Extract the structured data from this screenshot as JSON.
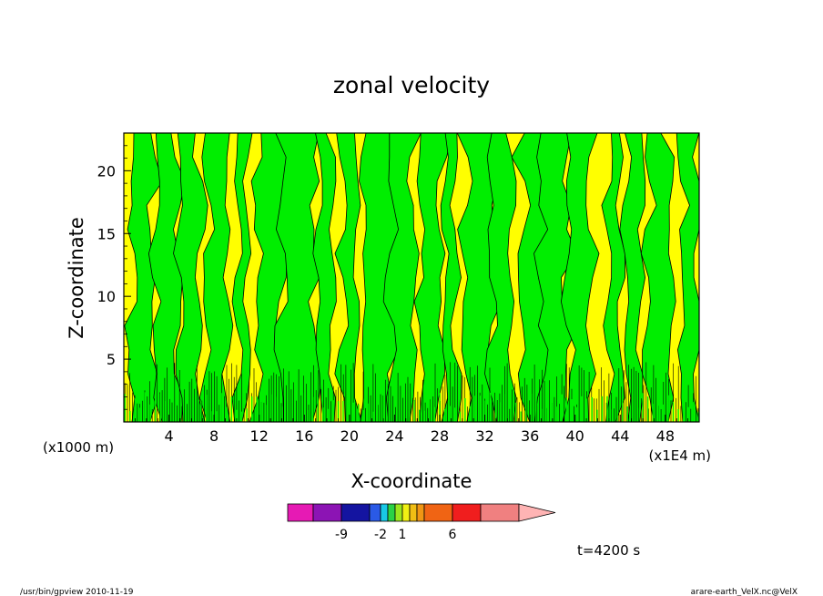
{
  "chart_data": {
    "type": "heatmap",
    "title": "zonal velocity",
    "xlabel": "X-coordinate",
    "ylabel": "Z-coordinate",
    "x_unit_label": "(x1E4 m)",
    "y_unit_label": "(x1000 m)",
    "xlim": [
      0,
      51
    ],
    "ylim": [
      0,
      23
    ],
    "x_ticks": [
      "4",
      "8",
      "12",
      "16",
      "20",
      "24",
      "28",
      "32",
      "36",
      "40",
      "44",
      "48"
    ],
    "y_ticks": [
      "5",
      "10",
      "15",
      "20"
    ],
    "colorbar": {
      "labels": [
        "-9",
        "-2",
        "1",
        "6"
      ],
      "colors": [
        "#e61ab4",
        "#8c14b4",
        "#1414a0",
        "#2a5ae6",
        "#19c8e6",
        "#2ad246",
        "#9be61e",
        "#f0f014",
        "#f0be14",
        "#f09614",
        "#f06414",
        "#f01e1e",
        "#f08080",
        "#ffb4b4"
      ]
    },
    "dominant_colors": {
      "positive": "#ffff00",
      "negative": "#00ee00"
    },
    "time_label": "t=4200 s"
  },
  "footer": {
    "left": "/usr/bin/gpview  2010-11-19",
    "right": "arare-earth_VelX.nc@VelX"
  }
}
